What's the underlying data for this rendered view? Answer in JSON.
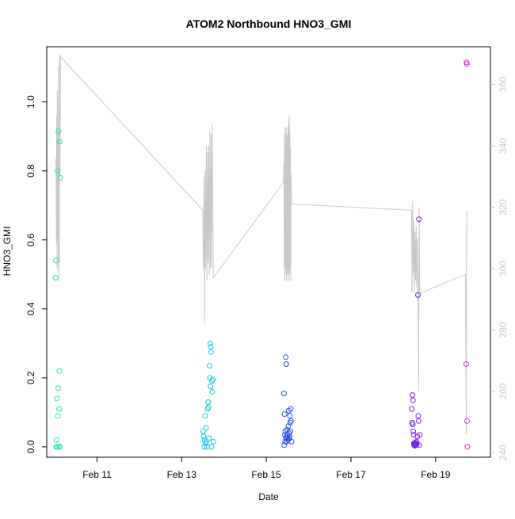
{
  "chart_data": {
    "type": "scatter",
    "title": "ATOM2 Northbound HNO3_GMI",
    "xlabel": "Date",
    "ylabel": "HNO3_GMI",
    "x_ticks": [
      {
        "day": 11,
        "label": "Feb 11"
      },
      {
        "day": 13,
        "label": "Feb 13"
      },
      {
        "day": 15,
        "label": "Feb 15"
      },
      {
        "day": 17,
        "label": "Feb 17"
      },
      {
        "day": 19,
        "label": "Feb 19"
      }
    ],
    "xlim": [
      "Feb 10 00:00",
      "Feb 19 23:00"
    ],
    "ylim": [
      -0.03,
      1.16
    ],
    "y_ticks": [
      0.0,
      0.2,
      0.4,
      0.6,
      0.8,
      1.0
    ],
    "y2_ticks": [
      240,
      260,
      280,
      300,
      320,
      340,
      360
    ],
    "y2lim": [
      238.5,
      372.3
    ],
    "grid": false,
    "legend": "none",
    "colors": {
      "secondary_line": "#c8c8c8",
      "secondary_axis": "#c8c8c8",
      "axis": "#000000",
      "points_early": "#22e8b4",
      "points_feb13": "#18c8e8",
      "points_feb15": "#2850f0",
      "points_feb18": "#7a20f0",
      "points_feb19": "#d828e0"
    },
    "series": [
      {
        "color": "#22e8b4",
        "points": [
          {
            "x": "Feb 10 00:30",
            "y": 0.49
          },
          {
            "x": "Feb 10 00:45",
            "y": 0.54
          },
          {
            "x": "Feb 10 00:50",
            "y": 0.0
          },
          {
            "x": "Feb 10 01:00",
            "y": 0.02
          },
          {
            "x": "Feb 10 01:10",
            "y": 0.14
          },
          {
            "x": "Feb 10 01:30",
            "y": 0.0
          },
          {
            "x": "Feb 10 01:40",
            "y": 0.8
          },
          {
            "x": "Feb 10 01:50",
            "y": 0.09
          },
          {
            "x": "Feb 10 02:00",
            "y": 0.17
          },
          {
            "x": "Feb 10 02:10",
            "y": 0.915
          },
          {
            "x": "Feb 10 02:20",
            "y": 0.0
          },
          {
            "x": "Feb 10 02:30",
            "y": 0.11
          },
          {
            "x": "Feb 10 02:40",
            "y": 0.22
          },
          {
            "x": "Feb 10 02:50",
            "y": 0.885
          },
          {
            "x": "Feb 10 03:00",
            "y": 0.0
          },
          {
            "x": "Feb 10 03:10",
            "y": 0.78
          }
        ]
      },
      {
        "color": "#18c8e8",
        "points": [
          {
            "x": "Feb 13 12:10",
            "y": 0.045
          },
          {
            "x": "Feb 13 12:30",
            "y": 0.03
          },
          {
            "x": "Feb 13 12:50",
            "y": 0.0
          },
          {
            "x": "Feb 13 13:00",
            "y": 0.02
          },
          {
            "x": "Feb 13 13:20",
            "y": 0.09
          },
          {
            "x": "Feb 13 13:30",
            "y": 0.01
          },
          {
            "x": "Feb 13 13:50",
            "y": 0.055
          },
          {
            "x": "Feb 13 14:00",
            "y": 0.015
          },
          {
            "x": "Feb 13 14:20",
            "y": 0.0
          },
          {
            "x": "Feb 13 14:40",
            "y": 0.11
          },
          {
            "x": "Feb 13 15:00",
            "y": 0.13
          },
          {
            "x": "Feb 13 15:10",
            "y": 0.115
          },
          {
            "x": "Feb 13 15:30",
            "y": 0.025
          },
          {
            "x": "Feb 13 15:50",
            "y": 0.235
          },
          {
            "x": "Feb 13 16:00",
            "y": 0.2
          },
          {
            "x": "Feb 13 16:10",
            "y": 0.3
          },
          {
            "x": "Feb 13 16:20",
            "y": 0.175
          },
          {
            "x": "Feb 13 16:30",
            "y": 0.29
          },
          {
            "x": "Feb 13 16:40",
            "y": 0.275
          },
          {
            "x": "Feb 13 17:00",
            "y": 0.0
          },
          {
            "x": "Feb 13 17:10",
            "y": 0.19
          },
          {
            "x": "Feb 13 17:20",
            "y": 0.16
          },
          {
            "x": "Feb 13 17:40",
            "y": 0.195
          },
          {
            "x": "Feb 13 18:00",
            "y": 0.015
          }
        ]
      },
      {
        "color": "#2850f0",
        "points": [
          {
            "x": "Feb 15 10:00",
            "y": 0.155
          },
          {
            "x": "Feb 15 10:10",
            "y": 0.005
          },
          {
            "x": "Feb 15 10:20",
            "y": 0.095
          },
          {
            "x": "Feb 15 10:30",
            "y": 0.035
          },
          {
            "x": "Feb 15 10:40",
            "y": 0.015
          },
          {
            "x": "Feb 15 10:50",
            "y": 0.045
          },
          {
            "x": "Feb 15 11:00",
            "y": 0.26
          },
          {
            "x": "Feb 15 11:10",
            "y": 0.025
          },
          {
            "x": "Feb 15 11:20",
            "y": 0.24
          },
          {
            "x": "Feb 15 11:30",
            "y": 0.03
          },
          {
            "x": "Feb 15 11:40",
            "y": 0.015
          },
          {
            "x": "Feb 15 11:50",
            "y": 0.05
          },
          {
            "x": "Feb 15 12:00",
            "y": 0.025
          },
          {
            "x": "Feb 15 12:10",
            "y": 0.035
          },
          {
            "x": "Feb 15 12:20",
            "y": 0.02
          },
          {
            "x": "Feb 15 12:30",
            "y": 0.06
          },
          {
            "x": "Feb 15 12:40",
            "y": 0.105
          },
          {
            "x": "Feb 15 12:50",
            "y": 0.04
          },
          {
            "x": "Feb 15 13:00",
            "y": 0.025
          },
          {
            "x": "Feb 15 13:10",
            "y": 0.03
          },
          {
            "x": "Feb 15 13:20",
            "y": 0.09
          },
          {
            "x": "Feb 15 13:30",
            "y": 0.07
          },
          {
            "x": "Feb 15 13:40",
            "y": 0.045
          },
          {
            "x": "Feb 15 13:50",
            "y": 0.11
          },
          {
            "x": "Feb 15 14:00",
            "y": 0.075
          },
          {
            "x": "Feb 15 14:20",
            "y": 0.015
          }
        ]
      },
      {
        "color": "#7a20f0",
        "points": [
          {
            "x": "Feb 18 10:30",
            "y": 0.11
          },
          {
            "x": "Feb 18 10:40",
            "y": 0.07
          },
          {
            "x": "Feb 18 10:50",
            "y": 0.15
          },
          {
            "x": "Feb 18 11:00",
            "y": 0.065
          },
          {
            "x": "Feb 18 11:10",
            "y": 0.135
          },
          {
            "x": "Feb 18 11:20",
            "y": 0.045
          },
          {
            "x": "Feb 18 11:30",
            "y": 0.035
          },
          {
            "x": "Feb 18 11:40",
            "y": 0.01
          },
          {
            "x": "Feb 18 11:50",
            "y": 0.005
          },
          {
            "x": "Feb 18 12:00",
            "y": 0.01
          },
          {
            "x": "Feb 18 12:10",
            "y": 0.003
          },
          {
            "x": "Feb 18 12:20",
            "y": 0.008
          },
          {
            "x": "Feb 18 12:30",
            "y": 0.012
          },
          {
            "x": "Feb 18 12:40",
            "y": 0.005
          },
          {
            "x": "Feb 18 12:50",
            "y": 0.01
          },
          {
            "x": "Feb 18 13:00",
            "y": 0.006
          },
          {
            "x": "Feb 18 13:10",
            "y": 0.015
          },
          {
            "x": "Feb 18 13:20",
            "y": 0.008
          },
          {
            "x": "Feb 18 13:40",
            "y": 0.03
          },
          {
            "x": "Feb 18 14:00",
            "y": 0.44
          },
          {
            "x": "Feb 18 14:10",
            "y": 0.09
          },
          {
            "x": "Feb 18 14:20",
            "y": 0.075
          },
          {
            "x": "Feb 18 14:30",
            "y": 0.66
          },
          {
            "x": "Feb 18 14:40",
            "y": 0.005
          },
          {
            "x": "Feb 18 15:00",
            "y": 0.035
          }
        ]
      },
      {
        "color": "#d828e0",
        "points": [
          {
            "x": "Feb 19 17:30",
            "y": 1.115
          },
          {
            "x": "Feb 19 17:40",
            "y": 1.11
          },
          {
            "x": "Feb 19 17:20",
            "y": 0.24
          },
          {
            "x": "Feb 19 17:50",
            "y": 0.075
          },
          {
            "x": "Feb 19 18:00",
            "y": 0.0
          }
        ]
      }
    ],
    "secondary_line": {
      "axis": "right",
      "x": [
        "Feb 10 00:30",
        "Feb 10 00:45",
        "Feb 10 01:00",
        "Feb 10 01:10",
        "Feb 10 01:20",
        "Feb 10 01:30",
        "Feb 10 01:40",
        "Feb 10 01:50",
        "Feb 10 02:00",
        "Feb 10 02:10",
        "Feb 10 02:20",
        "Feb 10 02:30",
        "Feb 10 02:40",
        "Feb 10 02:50",
        "Feb 10 03:00",
        "Feb 10 03:20",
        "Feb 13 12:00",
        "Feb 13 12:20",
        "Feb 13 12:40",
        "Feb 13 13:00",
        "Feb 13 13:20",
        "Feb 13 13:40",
        "Feb 13 14:00",
        "Feb 13 14:20",
        "Feb 13 14:40",
        "Feb 13 15:00",
        "Feb 13 15:20",
        "Feb 13 15:40",
        "Feb 13 16:00",
        "Feb 13 16:20",
        "Feb 13 16:40",
        "Feb 13 17:00",
        "Feb 13 17:20",
        "Feb 13 17:40",
        "Feb 13 18:00",
        "Feb 15 09:40",
        "Feb 15 10:00",
        "Feb 15 10:10",
        "Feb 15 10:20",
        "Feb 15 10:30",
        "Feb 15 10:40",
        "Feb 15 10:50",
        "Feb 15 11:00",
        "Feb 15 11:10",
        "Feb 15 11:20",
        "Feb 15 11:30",
        "Feb 15 11:40",
        "Feb 15 11:50",
        "Feb 15 12:00",
        "Feb 15 12:10",
        "Feb 15 12:20",
        "Feb 15 12:30",
        "Feb 15 12:40",
        "Feb 15 12:50",
        "Feb 15 13:00",
        "Feb 15 13:10",
        "Feb 15 13:20",
        "Feb 15 13:30",
        "Feb 15 13:40",
        "Feb 15 13:50",
        "Feb 15 14:00",
        "Feb 15 14:20",
        "Feb 18 10:20",
        "Feb 18 10:40",
        "Feb 18 11:00",
        "Feb 18 11:20",
        "Feb 18 11:40",
        "Feb 18 12:00",
        "Feb 18 12:20",
        "Feb 18 12:40",
        "Feb 18 13:00",
        "Feb 18 13:20",
        "Feb 18 13:40",
        "Feb 18 14:00",
        "Feb 18 14:20",
        "Feb 18 14:40",
        "Feb 18 15:00",
        "Feb 18 15:20",
        "Feb 19 16:40",
        "Feb 19 17:00",
        "Feb 19 17:20",
        "Feb 19 17:40"
      ],
      "y": [
        334,
        336,
        308,
        350,
        300,
        358,
        310,
        342,
        300,
        366,
        296,
        352,
        302,
        370,
        330,
        369,
        319,
        300,
        330,
        282,
        332,
        300,
        340,
        296,
        338,
        302,
        340,
        298,
        345,
        300,
        344,
        300,
        347,
        320,
        297,
        328,
        335,
        300,
        344,
        296,
        346,
        300,
        340,
        298,
        346,
        296,
        344,
        298,
        343,
        300,
        346,
        298,
        348,
        296,
        350,
        298,
        344,
        300,
        340,
        296,
        331,
        321,
        319,
        292,
        322,
        298,
        316,
        292,
        312,
        296,
        314,
        294,
        310,
        292,
        260,
        320,
        293,
        292,
        298,
        298,
        246,
        319
      ]
    }
  }
}
